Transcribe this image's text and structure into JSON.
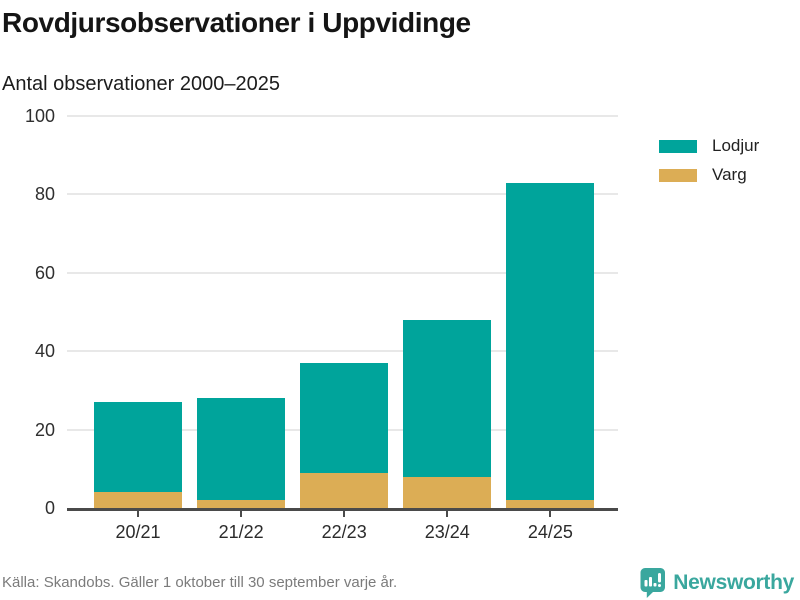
{
  "header": {
    "title": "Rovdjursobservationer i Uppvidinge",
    "subtitle": "Antal observationer 2000–2025"
  },
  "chart_data": {
    "type": "bar",
    "stacked": true,
    "title": "Rovdjursobservationer i Uppvidinge",
    "subtitle": "Antal observationer 2000–2025",
    "xlabel": "",
    "ylabel": "",
    "categories": [
      "20/21",
      "21/22",
      "22/23",
      "23/24",
      "24/25"
    ],
    "series": [
      {
        "name": "Lodjur",
        "color": "#00a49b",
        "values": [
          23,
          26,
          28,
          40,
          81
        ]
      },
      {
        "name": "Varg",
        "color": "#dcad55",
        "values": [
          4,
          2,
          9,
          8,
          2
        ]
      }
    ],
    "stack_totals": [
      27,
      28,
      37,
      48,
      83
    ],
    "stack_order_bottom_to_top": [
      "Varg",
      "Lodjur"
    ],
    "ylim": [
      0,
      100
    ],
    "yticks": [
      0,
      20,
      40,
      60,
      80,
      100
    ],
    "grid": true,
    "legend_position": "right"
  },
  "legend": {
    "items": [
      {
        "label": "Lodjur",
        "color": "#00a49b"
      },
      {
        "label": "Varg",
        "color": "#dcad55"
      }
    ]
  },
  "footer": {
    "source": "Källa: Skandobs. Gäller 1 oktober till 30 september varje år.",
    "brand": "Newsworthy"
  },
  "colors": {
    "bar_teal": "#00a49b",
    "bar_gold": "#dcad55",
    "axis": "#4a4a4a",
    "gridline": "#e8e8e8",
    "brand_teal": "#3aa79e",
    "source_text": "#7b7b7b",
    "background": "#ffffff"
  }
}
